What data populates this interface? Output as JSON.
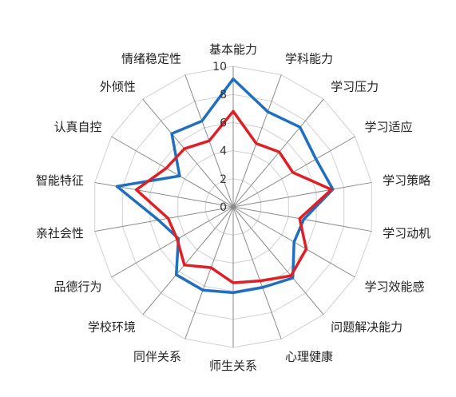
{
  "chart_data": {
    "type": "radar",
    "title": "",
    "categories": [
      "基本能力",
      "学科能力",
      "学习压力",
      "学习适应",
      "学习策略",
      "学习动机",
      "学习效能感",
      "问题解决能力",
      "心理健康",
      "师生关系",
      "同伴关系",
      "学校环境",
      "品德行为",
      "亲社会性",
      "智能特征",
      "认真自控",
      "外倾性",
      "情绪稳定性"
    ],
    "rlim": [
      0,
      10
    ],
    "ticks": [
      "0",
      "2",
      "4",
      "6",
      "8",
      "10"
    ],
    "grid": true,
    "series": [
      {
        "color": "#1f6fc0",
        "values": [
          9.1,
          7.2,
          7.4,
          6.8,
          7.2,
          5.1,
          5.0,
          6.6,
          6.1,
          6.1,
          6.3,
          6.3,
          4.5,
          5.4,
          8.4,
          4.4,
          6.8,
          6.5
        ]
      },
      {
        "color": "#e01e26",
        "values": [
          6.8,
          4.8,
          5.1,
          4.9,
          7.1,
          4.8,
          6.0,
          6.4,
          5.6,
          5.4,
          4.6,
          5.4,
          4.6,
          4.7,
          7.0,
          5.5,
          5.4,
          5.0
        ]
      }
    ]
  }
}
